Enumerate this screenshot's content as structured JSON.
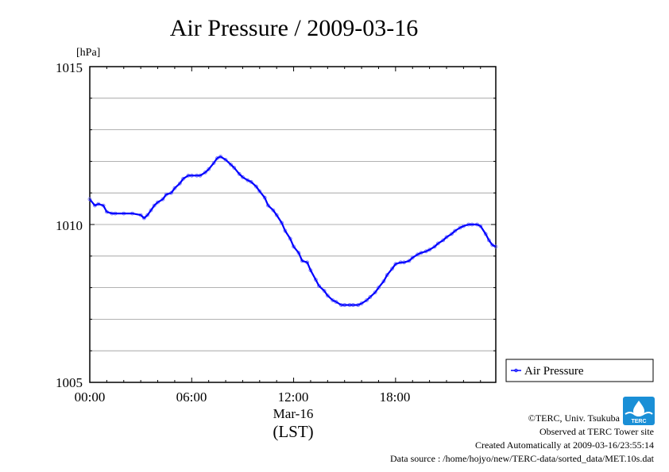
{
  "chart_data": {
    "type": "line",
    "title": "Air Pressure / 2009-03-16",
    "ylabel": "[hPa]",
    "ylim": [
      1005,
      1015
    ],
    "y_ticks": [
      "1005",
      "1010",
      "1015"
    ],
    "xlim_hours": [
      0,
      23.9
    ],
    "x_ticks": [
      "00:00",
      "06:00",
      "12:00",
      "18:00"
    ],
    "x_date_label": "Mar-16",
    "x_axis_label": "(LST)",
    "grid": true,
    "legend_position": "right",
    "series": [
      {
        "name": "Air Pressure",
        "color": "#0000ff",
        "x_hours": [
          0.0,
          0.3,
          0.5,
          0.8,
          1.0,
          1.3,
          1.5,
          2.0,
          2.5,
          3.0,
          3.2,
          3.4,
          3.6,
          3.8,
          4.0,
          4.3,
          4.5,
          4.8,
          5.0,
          5.3,
          5.5,
          5.8,
          6.0,
          6.3,
          6.5,
          6.8,
          7.0,
          7.3,
          7.5,
          7.7,
          8.0,
          8.3,
          8.5,
          8.8,
          9.0,
          9.3,
          9.5,
          9.8,
          10.0,
          10.3,
          10.5,
          10.8,
          11.0,
          11.3,
          11.5,
          11.8,
          12.0,
          12.3,
          12.5,
          12.8,
          13.0,
          13.3,
          13.5,
          13.8,
          14.0,
          14.3,
          14.5,
          14.8,
          15.0,
          15.3,
          15.5,
          15.8,
          16.0,
          16.3,
          16.5,
          16.8,
          17.0,
          17.3,
          17.5,
          17.8,
          18.0,
          18.3,
          18.5,
          18.8,
          19.0,
          19.3,
          19.5,
          19.8,
          20.0,
          20.3,
          20.5,
          20.8,
          21.0,
          21.3,
          21.5,
          21.8,
          22.0,
          22.3,
          22.5,
          22.8,
          23.0,
          23.3,
          23.5,
          23.7,
          23.9
        ],
        "values": [
          1010.8,
          1010.6,
          1010.65,
          1010.6,
          1010.4,
          1010.35,
          1010.35,
          1010.35,
          1010.35,
          1010.3,
          1010.2,
          1010.3,
          1010.45,
          1010.6,
          1010.7,
          1010.8,
          1010.95,
          1011.0,
          1011.15,
          1011.3,
          1011.45,
          1011.55,
          1011.55,
          1011.55,
          1011.55,
          1011.65,
          1011.75,
          1011.95,
          1012.1,
          1012.15,
          1012.05,
          1011.9,
          1011.8,
          1011.6,
          1011.5,
          1011.4,
          1011.35,
          1011.2,
          1011.05,
          1010.85,
          1010.6,
          1010.45,
          1010.3,
          1010.05,
          1009.8,
          1009.55,
          1009.3,
          1009.1,
          1008.85,
          1008.8,
          1008.55,
          1008.25,
          1008.05,
          1007.9,
          1007.75,
          1007.6,
          1007.55,
          1007.45,
          1007.45,
          1007.45,
          1007.45,
          1007.45,
          1007.5,
          1007.6,
          1007.7,
          1007.85,
          1008.0,
          1008.2,
          1008.4,
          1008.6,
          1008.75,
          1008.8,
          1008.8,
          1008.85,
          1008.95,
          1009.05,
          1009.1,
          1009.15,
          1009.2,
          1009.3,
          1009.4,
          1009.5,
          1009.6,
          1009.7,
          1009.8,
          1009.9,
          1009.95,
          1010.0,
          1010.0,
          1010.0,
          1009.95,
          1009.7,
          1009.5,
          1009.35,
          1009.3
        ]
      }
    ]
  },
  "footer": {
    "copyright": "©TERC, Univ. Tsukuba",
    "observed": "Observed at TERC Tower site",
    "created": "Created Automatically at 2009-03-16/23:55:14",
    "source": "Data source : /home/hojyo/new/TERC-data/sorted_data/MET.10s.dat"
  },
  "logo": {
    "text": "TERC",
    "color": "#1a8fd6"
  }
}
